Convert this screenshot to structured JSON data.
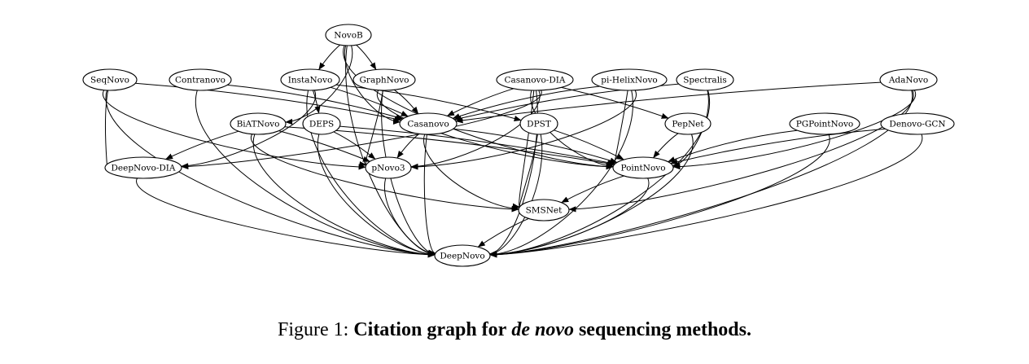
{
  "nodes": [
    {
      "id": "NovoB",
      "label": "NovoB"
    },
    {
      "id": "SeqNovo",
      "label": "SeqNovo"
    },
    {
      "id": "Contranovo",
      "label": "Contranovo"
    },
    {
      "id": "InstaNovo",
      "label": "InstaNovo"
    },
    {
      "id": "GraphNovo",
      "label": "GraphNovo"
    },
    {
      "id": "Casanovo-DIA",
      "label": "Casanovo-DIA"
    },
    {
      "id": "pi-HelixNovo",
      "label": "pi-HelixNovo"
    },
    {
      "id": "Spectralis",
      "label": "Spectralis"
    },
    {
      "id": "AdaNovo",
      "label": "AdaNovo"
    },
    {
      "id": "BiATNovo",
      "label": "BiATNovo"
    },
    {
      "id": "DEPS",
      "label": "DEPS"
    },
    {
      "id": "Casanovo",
      "label": "Casanovo"
    },
    {
      "id": "DPST",
      "label": "DPST"
    },
    {
      "id": "PepNet",
      "label": "PepNet"
    },
    {
      "id": "PGPointNovo",
      "label": "PGPointNovo"
    },
    {
      "id": "Denovo-GCN",
      "label": "Denovo-GCN"
    },
    {
      "id": "DeepNovo-DIA",
      "label": "DeepNovo-DIA"
    },
    {
      "id": "pNovo3",
      "label": "pNovo3"
    },
    {
      "id": "PointNovo",
      "label": "PointNovo"
    },
    {
      "id": "SMSNet",
      "label": "SMSNet"
    },
    {
      "id": "DeepNovo",
      "label": "DeepNovo"
    }
  ],
  "edges": [
    [
      "NovoB",
      "InstaNovo"
    ],
    [
      "NovoB",
      "GraphNovo"
    ],
    [
      "NovoB",
      "BiATNovo"
    ],
    [
      "NovoB",
      "Casanovo"
    ],
    [
      "NovoB",
      "PointNovo"
    ],
    [
      "NovoB",
      "DeepNovo"
    ],
    [
      "SeqNovo",
      "DeepNovo-DIA"
    ],
    [
      "SeqNovo",
      "Casanovo"
    ],
    [
      "SeqNovo",
      "pNovo3"
    ],
    [
      "SeqNovo",
      "DeepNovo"
    ],
    [
      "Contranovo",
      "Casanovo"
    ],
    [
      "Contranovo",
      "DeepNovo"
    ],
    [
      "InstaNovo",
      "DEPS"
    ],
    [
      "InstaNovo",
      "Casanovo"
    ],
    [
      "InstaNovo",
      "DPST"
    ],
    [
      "InstaNovo",
      "DeepNovo-DIA"
    ],
    [
      "InstaNovo",
      "DeepNovo"
    ],
    [
      "GraphNovo",
      "Casanovo"
    ],
    [
      "GraphNovo",
      "pNovo3"
    ],
    [
      "GraphNovo",
      "PointNovo"
    ],
    [
      "GraphNovo",
      "DeepNovo"
    ],
    [
      "Casanovo-DIA",
      "Casanovo"
    ],
    [
      "Casanovo-DIA",
      "DeepNovo-DIA"
    ],
    [
      "Casanovo-DIA",
      "pNovo3"
    ],
    [
      "Casanovo-DIA",
      "PepNet"
    ],
    [
      "Casanovo-DIA",
      "PointNovo"
    ],
    [
      "Casanovo-DIA",
      "SMSNet"
    ],
    [
      "Casanovo-DIA",
      "DeepNovo"
    ],
    [
      "pi-HelixNovo",
      "Casanovo"
    ],
    [
      "pi-HelixNovo",
      "pNovo3"
    ],
    [
      "pi-HelixNovo",
      "PointNovo"
    ],
    [
      "pi-HelixNovo",
      "DeepNovo"
    ],
    [
      "Spectralis",
      "Casanovo"
    ],
    [
      "Spectralis",
      "PointNovo"
    ],
    [
      "Spectralis",
      "DeepNovo"
    ],
    [
      "AdaNovo",
      "Casanovo"
    ],
    [
      "AdaNovo",
      "PointNovo"
    ],
    [
      "AdaNovo",
      "SMSNet"
    ],
    [
      "AdaNovo",
      "DeepNovo"
    ],
    [
      "BiATNovo",
      "DeepNovo-DIA"
    ],
    [
      "BiATNovo",
      "pNovo3"
    ],
    [
      "BiATNovo",
      "PointNovo"
    ],
    [
      "BiATNovo",
      "SMSNet"
    ],
    [
      "BiATNovo",
      "DeepNovo"
    ],
    [
      "DEPS",
      "pNovo3"
    ],
    [
      "DEPS",
      "PointNovo"
    ],
    [
      "DEPS",
      "DeepNovo"
    ],
    [
      "Casanovo",
      "pNovo3"
    ],
    [
      "Casanovo",
      "PointNovo"
    ],
    [
      "Casanovo",
      "SMSNet"
    ],
    [
      "Casanovo",
      "DeepNovo"
    ],
    [
      "DPST",
      "PointNovo"
    ],
    [
      "DPST",
      "SMSNet"
    ],
    [
      "DPST",
      "DeepNovo"
    ],
    [
      "PepNet",
      "PointNovo"
    ],
    [
      "PepNet",
      "DeepNovo"
    ],
    [
      "PGPointNovo",
      "PointNovo"
    ],
    [
      "PGPointNovo",
      "DeepNovo"
    ],
    [
      "Denovo-GCN",
      "PointNovo"
    ],
    [
      "Denovo-GCN",
      "DeepNovo"
    ],
    [
      "DeepNovo-DIA",
      "DeepNovo"
    ],
    [
      "pNovo3",
      "DeepNovo"
    ],
    [
      "PointNovo",
      "SMSNet"
    ],
    [
      "PointNovo",
      "DeepNovo"
    ],
    [
      "SMSNet",
      "DeepNovo"
    ]
  ],
  "caption": {
    "prefix": "Figure 1:",
    "part1": "Citation graph for",
    "italic": "de novo",
    "part2": "sequencing methods."
  }
}
